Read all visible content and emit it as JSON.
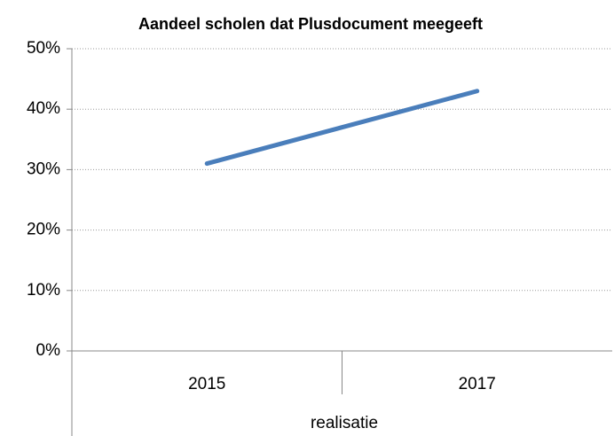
{
  "chart_data": {
    "type": "line",
    "title": "Aandeel scholen dat Plusdocument meegeeft",
    "categories": [
      "2015",
      "2017"
    ],
    "values": [
      31,
      43
    ],
    "color": "#4a7ebb",
    "xlabel": "realisatie",
    "ylim": [
      0,
      50
    ],
    "yticks": [
      {
        "value": 0,
        "label": "0%"
      },
      {
        "value": 10,
        "label": "10%"
      },
      {
        "value": 20,
        "label": "20%"
      },
      {
        "value": 30,
        "label": "30%"
      },
      {
        "value": 40,
        "label": "40%"
      },
      {
        "value": 50,
        "label": "50%"
      }
    ],
    "grid": true
  }
}
